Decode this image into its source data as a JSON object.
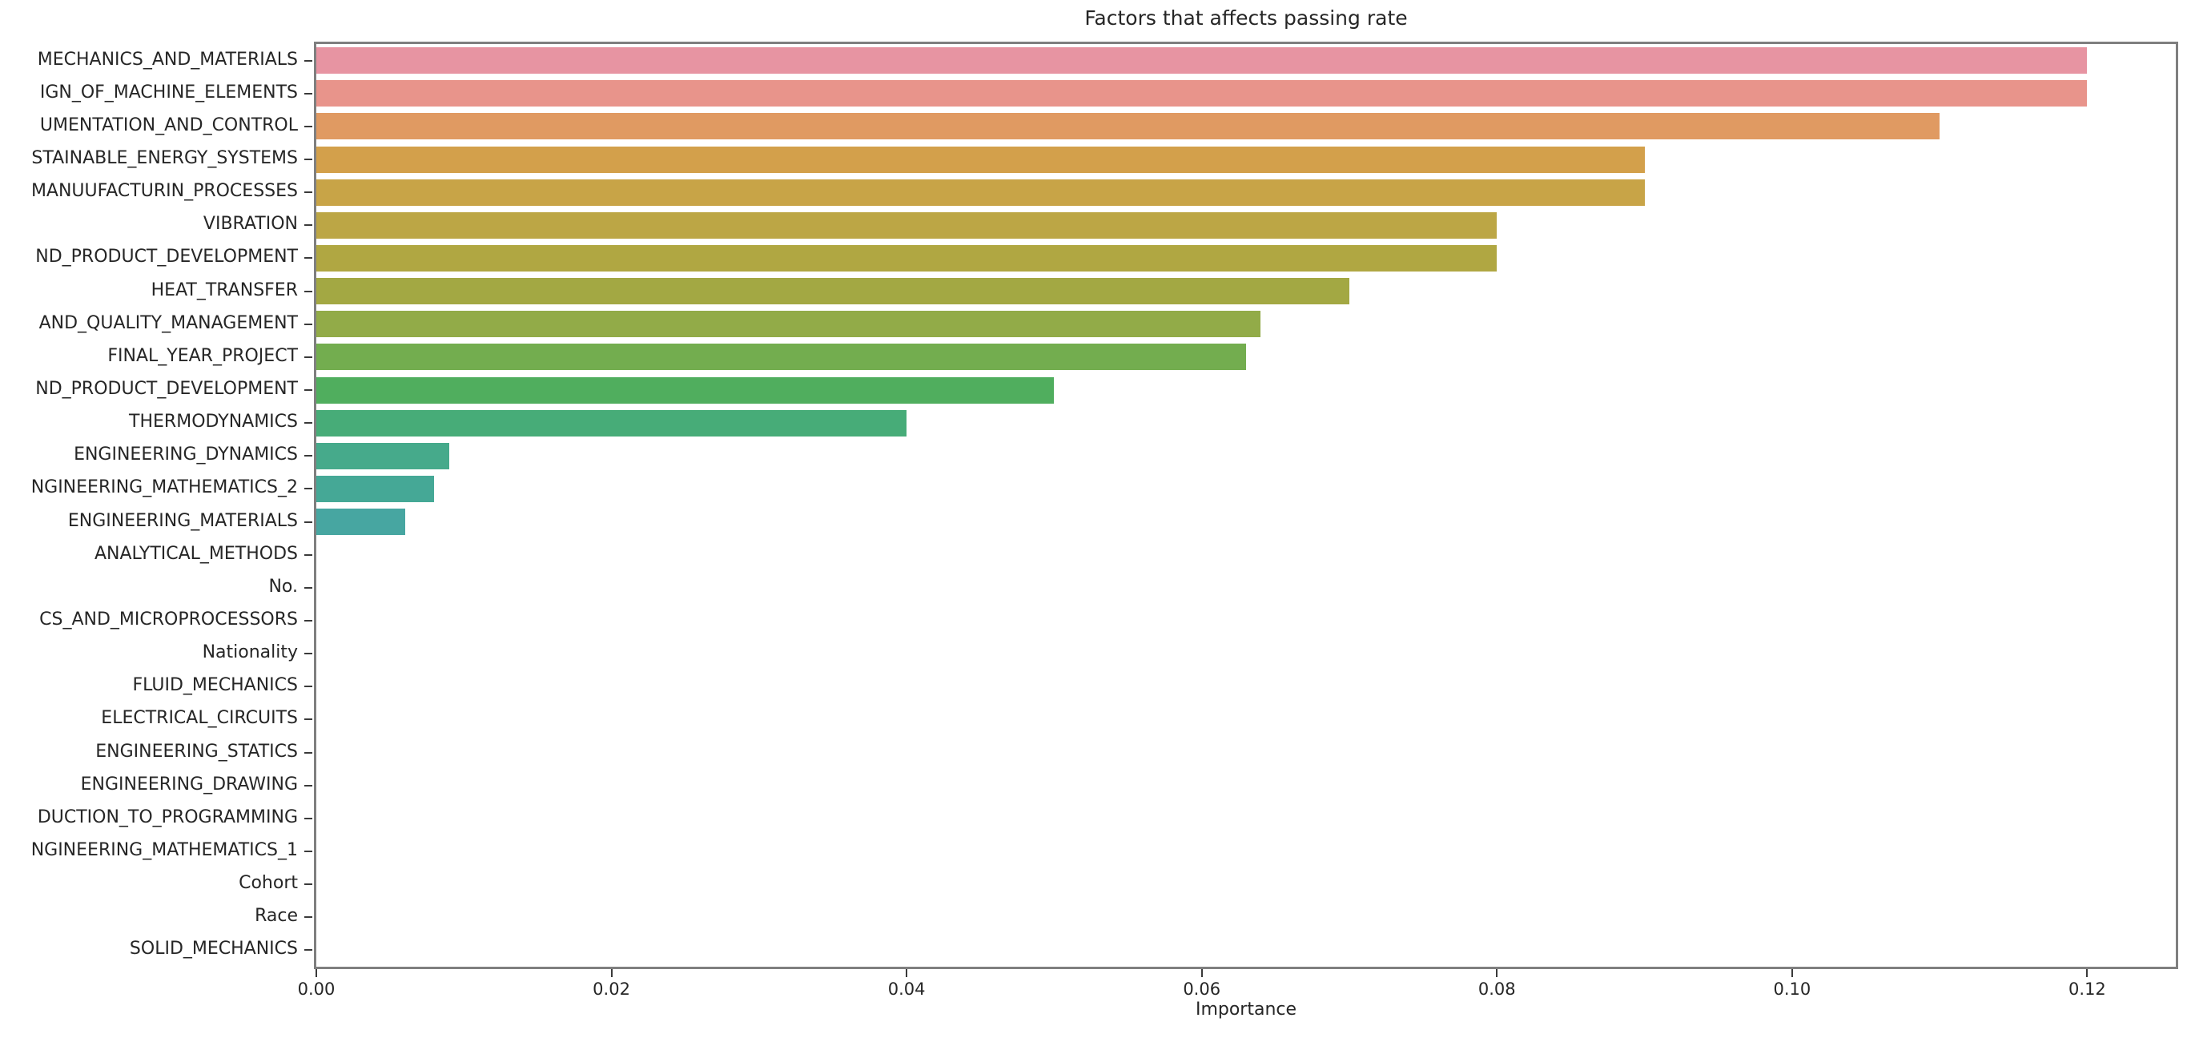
{
  "chart_data": {
    "type": "bar",
    "orientation": "horizontal",
    "title": "Factors that affects passing rate",
    "xlabel": "Importance",
    "ylabel": "",
    "grid": false,
    "legend": null,
    "xlim": [
      0,
      0.126
    ],
    "x_ticks": [
      0.0,
      0.02,
      0.04,
      0.06,
      0.08,
      0.1,
      0.12
    ],
    "x_tick_labels": [
      "0.00",
      "0.02",
      "0.04",
      "0.06",
      "0.08",
      "0.10",
      "0.12"
    ],
    "categories": [
      "MECHANICS_AND_MATERIALS",
      "IGN_OF_MACHINE_ELEMENTS",
      "UMENTATION_AND_CONTROL",
      "STAINABLE_ENERGY_SYSTEMS",
      "MANUUFACTURIN_PROCESSES",
      "VIBRATION",
      "ND_PRODUCT_DEVELOPMENT",
      "HEAT_TRANSFER",
      "AND_QUALITY_MANAGEMENT",
      "FINAL_YEAR_PROJECT",
      "ND_PRODUCT_DEVELOPMENT",
      "THERMODYNAMICS",
      "ENGINEERING_DYNAMICS",
      "NGINEERING_MATHEMATICS_2",
      "ENGINEERING_MATERIALS",
      "ANALYTICAL_METHODS",
      "No.",
      "CS_AND_MICROPROCESSORS",
      "Nationality",
      "FLUID_MECHANICS",
      "ELECTRICAL_CIRCUITS",
      "ENGINEERING_STATICS",
      "ENGINEERING_DRAWING",
      "DUCTION_TO_PROGRAMMING",
      "NGINEERING_MATHEMATICS_1",
      "Cohort",
      "Race",
      "SOLID_MECHANICS"
    ],
    "values": [
      0.12,
      0.12,
      0.11,
      0.09,
      0.09,
      0.08,
      0.08,
      0.07,
      0.064,
      0.063,
      0.05,
      0.04,
      0.009,
      0.008,
      0.006,
      0,
      0,
      0,
      0,
      0,
      0,
      0,
      0,
      0,
      0,
      0,
      0,
      0
    ],
    "bar_colors": [
      "#e794a2",
      "#e8948b",
      "#e09a62",
      "#d3a04b",
      "#c8a447",
      "#bca645",
      "#b0a742",
      "#a3a843",
      "#92ab48",
      "#73ad4f",
      "#50ae5e",
      "#47ac78",
      "#46aa8b",
      "#45a896",
      "#47a6a1",
      null,
      null,
      null,
      null,
      null,
      null,
      null,
      null,
      null,
      null,
      null,
      null,
      null
    ],
    "colors": {
      "background": "#ffffff",
      "spine": "#7f7f7f",
      "tick": "#3a3a3a",
      "text": "#262626"
    }
  }
}
